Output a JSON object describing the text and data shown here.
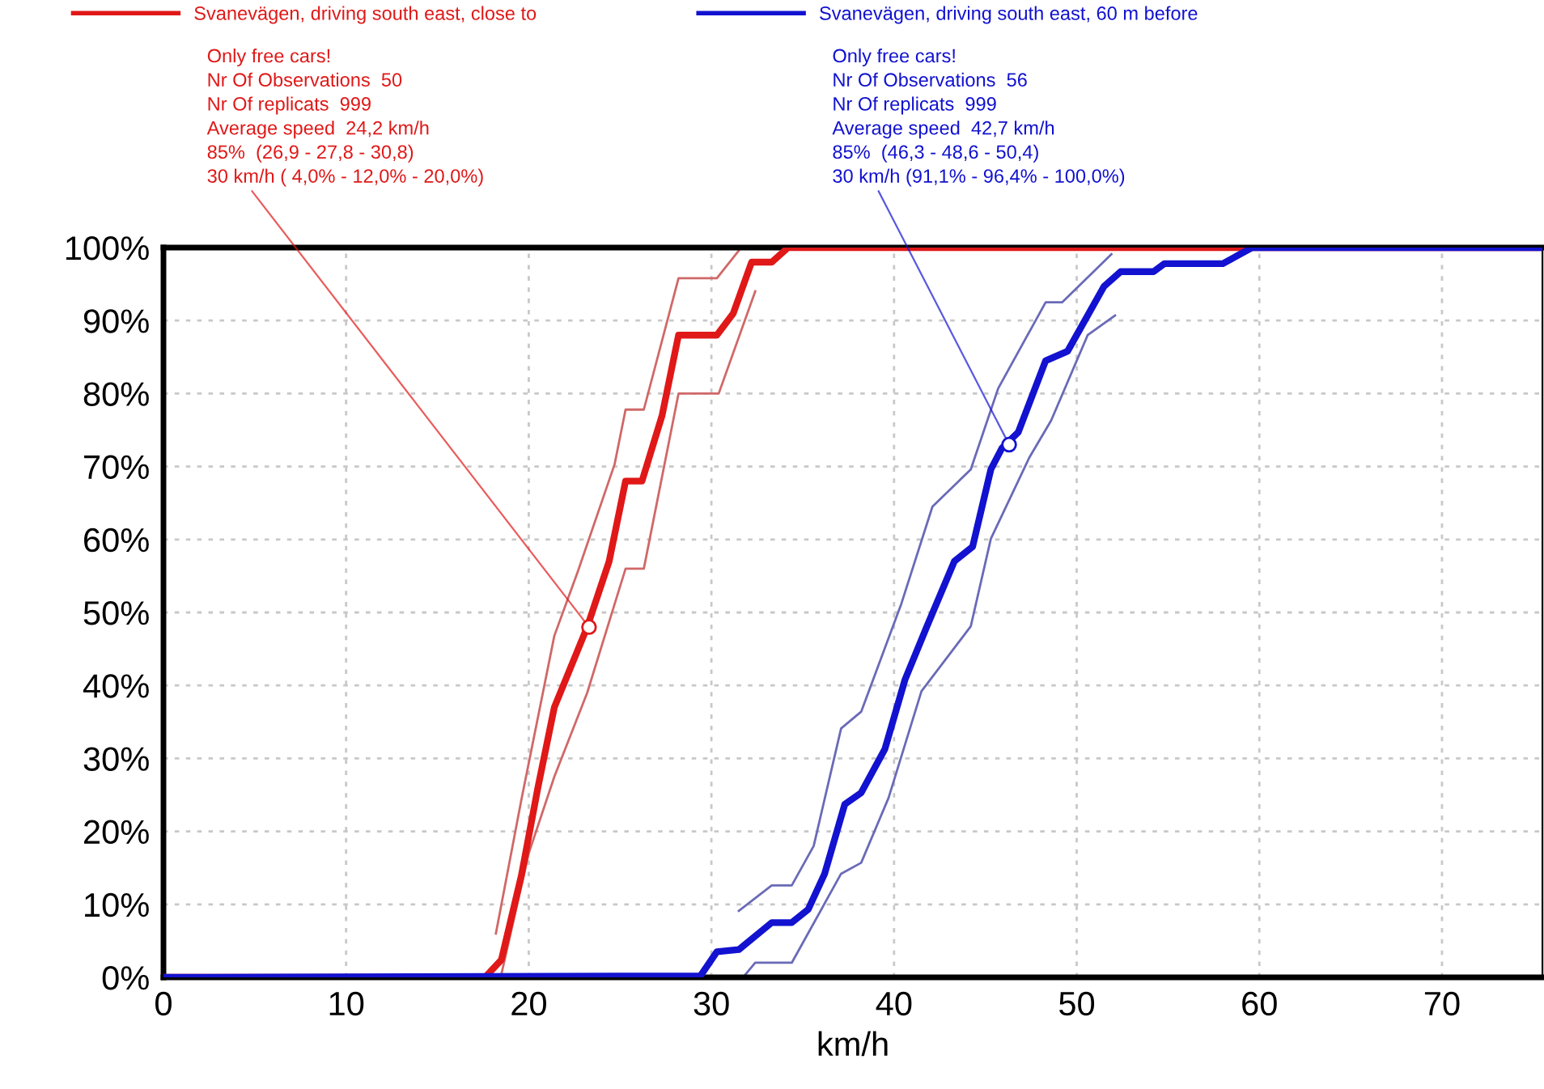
{
  "chart_data": {
    "type": "line",
    "xlabel": "km/h",
    "xlim": [
      0,
      75.5
    ],
    "xticks": [
      0,
      10,
      20,
      30,
      40,
      50,
      60,
      70
    ],
    "ylim": [
      0,
      100
    ],
    "yticks": [
      {
        "value": 0,
        "label": "0%"
      },
      {
        "value": 10,
        "label": "10%"
      },
      {
        "value": 20,
        "label": "20%"
      },
      {
        "value": 30,
        "label": "30%"
      },
      {
        "value": 40,
        "label": "40%"
      },
      {
        "value": 50,
        "label": "50%"
      },
      {
        "value": 60,
        "label": "60%"
      },
      {
        "value": 70,
        "label": "70%"
      },
      {
        "value": 80,
        "label": "80%"
      },
      {
        "value": 90,
        "label": "90%"
      },
      {
        "value": 100,
        "label": "100%"
      }
    ],
    "grid": true,
    "legend": "top left",
    "line_style": "solid",
    "marker": "none",
    "series": [
      {
        "name": "Svanevägen, driving south east, close to",
        "color": "#e01818",
        "x": [
          0,
          17.6,
          18.5,
          19.6,
          20.5,
          21.4,
          23.2,
          24.4,
          25.3,
          26.2,
          27.3,
          28.2,
          30.3,
          31.2,
          32.2,
          33.3,
          34.2,
          75.5
        ],
        "values": [
          0,
          0,
          2.4,
          14,
          26,
          37,
          48,
          57,
          68,
          68,
          77,
          88,
          88,
          91,
          98,
          98,
          100,
          100
        ]
      },
      {
        "color": "#d06868",
        "x": [
          18.2,
          19.6,
          21.4,
          22.7,
          24.7,
          25.3,
          26.3,
          28.2,
          30.3,
          31.5
        ],
        "values": [
          6,
          24.4,
          46.8,
          55.7,
          70.3,
          77.8,
          77.8,
          95.8,
          95.8,
          99.6
        ]
      },
      {
        "color": "#d06868",
        "x": [
          18.5,
          20,
          21.4,
          23.2,
          25.3,
          26.3,
          28.2,
          30.4,
          32.4
        ],
        "values": [
          0.4,
          17,
          27.5,
          39,
          56,
          56,
          80,
          80,
          94
        ]
      },
      {
        "name": "Svanevägen, driving south east, 60 m before",
        "color": "#1212d0",
        "x": [
          0,
          29.4,
          30.3,
          31.5,
          33.3,
          34.4,
          35.3,
          36.2,
          37.3,
          38.2,
          39.5,
          40.6,
          41.8,
          43.3,
          44.3,
          45.3,
          45.9,
          46.8,
          48.3,
          49.5,
          51.5,
          52.4,
          54.2,
          54.8,
          58.0,
          59.6,
          75.5
        ],
        "values": [
          0,
          0.2,
          3.5,
          3.8,
          7.5,
          7.5,
          9.3,
          14.2,
          23.7,
          25.3,
          31.3,
          40.8,
          48.1,
          57,
          59,
          69.6,
          72.5,
          74.7,
          84.5,
          85.8,
          94.7,
          96.7,
          96.7,
          97.8,
          97.8,
          100,
          100
        ]
      },
      {
        "color": "#6a6ab8",
        "x": [
          31.5,
          33.3,
          34.4,
          35.6,
          37.1,
          38.2,
          40.4,
          42.1,
          44.2,
          45.7,
          48.3,
          49.2,
          51.9
        ],
        "values": [
          9.1,
          12.6,
          12.6,
          18,
          34.1,
          36.4,
          51.2,
          64.5,
          69.6,
          80.7,
          92.5,
          92.5,
          99.1
        ]
      },
      {
        "color": "#6a6ab8",
        "x": [
          31.8,
          32.4,
          34.4,
          37.1,
          38.2,
          39.7,
          41.5,
          44.2,
          45.3,
          47.4,
          48.6,
          50.6,
          52.1
        ],
        "values": [
          0.2,
          2,
          2,
          14.2,
          15.7,
          24.6,
          39.2,
          48.1,
          60.1,
          71.2,
          76.3,
          88,
          90.7
        ]
      }
    ],
    "annotations": [
      {
        "text": "Only free cars!\nNr Of Observations  50\nNr Of replicats  999\nAverage speed  24,2 km/h\n85%  (26,9 - 27,8 - 30,8)\n30 km/h ( 4,0% - 12,0% - 20,0%)",
        "x": 23.3,
        "y": 48
      },
      {
        "text": "Only free cars!\nNr Of Observations  56\nNr Of replicats  999\nAverage speed  42,7 km/h\n85%  (46,3 - 48,6 - 50,4)\n30 km/h (91,1% - 96,4% - 100,0%)",
        "x": 46.3,
        "y": 73
      }
    ]
  }
}
